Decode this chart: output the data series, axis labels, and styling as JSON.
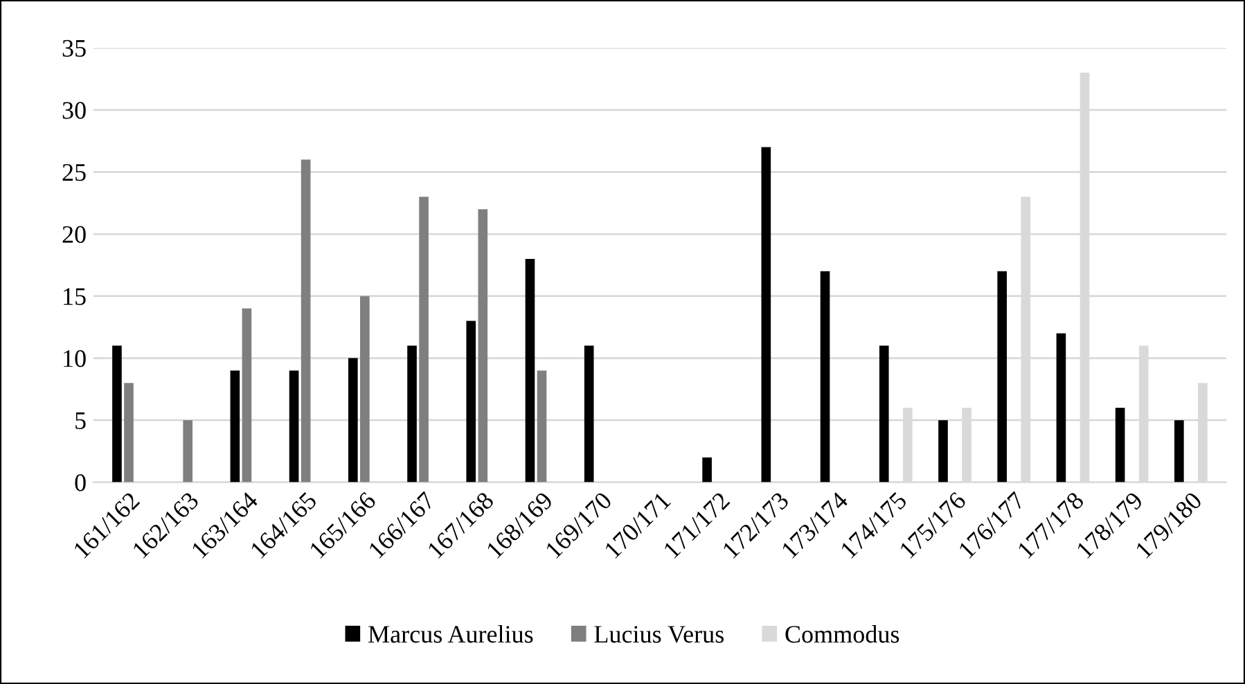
{
  "chart_data": {
    "type": "bar",
    "categories": [
      "161/162",
      "162/163",
      "163/164",
      "164/165",
      "165/166",
      "166/167",
      "167/168",
      "168/169",
      "169/170",
      "170/171",
      "171/172",
      "172/173",
      "173/174",
      "174/175",
      "175/176",
      "176/177",
      "177/178",
      "178/179",
      "179/180"
    ],
    "series": [
      {
        "name": "Marcus Aurelius",
        "color": "#000000",
        "values": [
          11,
          null,
          9,
          9,
          10,
          11,
          13,
          18,
          11,
          null,
          2,
          27,
          17,
          11,
          5,
          17,
          12,
          6,
          5
        ]
      },
      {
        "name": "Lucius Verus",
        "color": "#7f7f7f",
        "values": [
          8,
          5,
          14,
          26,
          15,
          23,
          22,
          9,
          null,
          null,
          null,
          null,
          null,
          null,
          null,
          null,
          null,
          null,
          null
        ]
      },
      {
        "name": "Commodus",
        "color": "#d9d9d9",
        "values": [
          null,
          null,
          null,
          null,
          null,
          null,
          null,
          null,
          null,
          null,
          null,
          null,
          null,
          6,
          6,
          23,
          33,
          11,
          8
        ]
      }
    ],
    "ylim": [
      0,
      35
    ],
    "yticks": [
      0,
      5,
      10,
      15,
      20,
      25,
      30,
      35
    ],
    "grid": "y",
    "legend": "bottom"
  }
}
